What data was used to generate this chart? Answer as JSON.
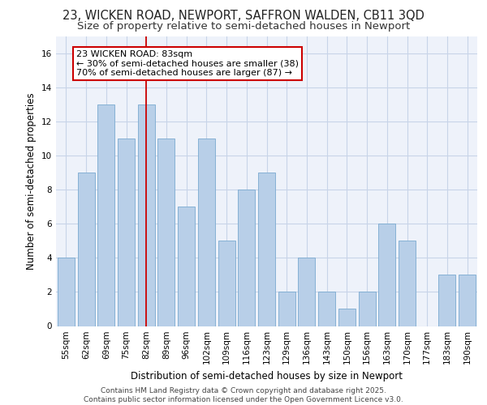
{
  "title_line1": "23, WICKEN ROAD, NEWPORT, SAFFRON WALDEN, CB11 3QD",
  "title_line2": "Size of property relative to semi-detached houses in Newport",
  "xlabel": "Distribution of semi-detached houses by size in Newport",
  "ylabel": "Number of semi-detached properties",
  "categories": [
    "55sqm",
    "62sqm",
    "69sqm",
    "75sqm",
    "82sqm",
    "89sqm",
    "96sqm",
    "102sqm",
    "109sqm",
    "116sqm",
    "123sqm",
    "129sqm",
    "136sqm",
    "143sqm",
    "150sqm",
    "156sqm",
    "163sqm",
    "170sqm",
    "177sqm",
    "183sqm",
    "190sqm"
  ],
  "values": [
    4,
    9,
    13,
    11,
    13,
    11,
    7,
    11,
    5,
    8,
    9,
    2,
    4,
    2,
    1,
    2,
    6,
    5,
    0,
    3,
    3
  ],
  "bar_color": "#b8cfe8",
  "bar_edge_color": "#7aaad0",
  "highlight_index": 4,
  "highlight_line_color": "#cc0000",
  "annotation_text": "23 WICKEN ROAD: 83sqm\n← 30% of semi-detached houses are smaller (38)\n70% of semi-detached houses are larger (87) →",
  "annotation_box_color": "#ffffff",
  "annotation_box_edge": "#cc0000",
  "ylim": [
    0,
    17
  ],
  "yticks": [
    0,
    2,
    4,
    6,
    8,
    10,
    12,
    14,
    16
  ],
  "grid_color": "#c8d4e8",
  "background_color": "#eef2fa",
  "footer_text": "Contains HM Land Registry data © Crown copyright and database right 2025.\nContains public sector information licensed under the Open Government Licence v3.0.",
  "title_fontsize": 10.5,
  "subtitle_fontsize": 9.5,
  "axis_label_fontsize": 8.5,
  "tick_fontsize": 7.5,
  "annotation_fontsize": 8,
  "footer_fontsize": 6.5
}
